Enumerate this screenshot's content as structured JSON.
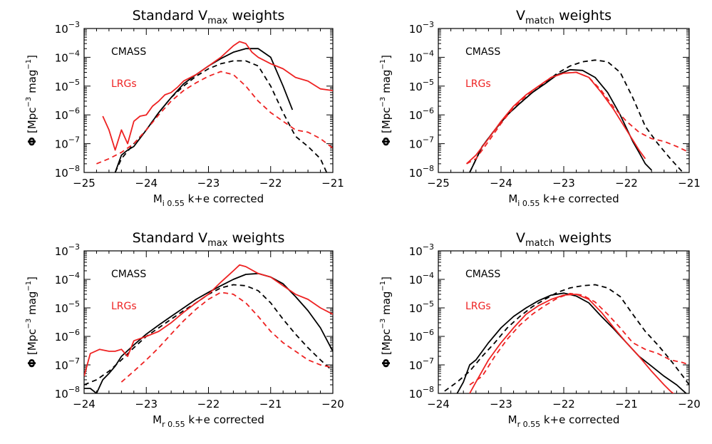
{
  "figure": {
    "ylabel_prefix": "Φ",
    "ylabel_unit": "[Mpc",
    "ylabel_exp1": "−3",
    "ylabel_mid": " mag",
    "ylabel_exp2": "−1",
    "ylabel_end": "]",
    "legend_black": "CMASS",
    "legend_red": "LRGs",
    "colors": {
      "cmass": "#000000",
      "lrgs": "#ee2222"
    }
  },
  "chart_data": [
    {
      "type": "line",
      "title": "Standard V",
      "title_sub": "max",
      "title_suffix": " weights",
      "xlabel": "M",
      "xlabel_sub": "i 0.55",
      "xlabel_suffix": " k+e corrected",
      "xlim": [
        -25,
        -21
      ],
      "ylim": [
        1e-08,
        0.001
      ],
      "yscale": "log",
      "xticks": [
        "−25",
        "−24",
        "−23",
        "−22",
        "−21"
      ],
      "yticks": [
        {
          "base": "10",
          "exp": "−3"
        },
        {
          "base": "10",
          "exp": "−4"
        },
        {
          "base": "10",
          "exp": "−5"
        },
        {
          "base": "10",
          "exp": "−6"
        },
        {
          "base": "10",
          "exp": "−7"
        },
        {
          "base": "10",
          "exp": "−8"
        }
      ],
      "series": [
        {
          "name": "CMASS",
          "color": "#000000",
          "dash": "solid",
          "x": [
            -24.5,
            -24.4,
            -24.3,
            -24.2,
            -24.0,
            -23.8,
            -23.6,
            -23.4,
            -23.2,
            -23.0,
            -22.8,
            -22.6,
            -22.4,
            -22.2,
            -22.0,
            -21.8,
            -21.65
          ],
          "y": [
            1e-08,
            4e-08,
            6e-08,
            8e-08,
            3e-07,
            1.2e-06,
            4e-06,
            1.2e-05,
            2.5e-05,
            5e-05,
            9e-05,
            0.00015,
            0.0002,
            0.0002,
            0.0001,
            1e-05,
            1.5e-06
          ]
        },
        {
          "name": "",
          "color": "#000000",
          "dash": "dashed",
          "x": [
            -24.5,
            -24.4,
            -24.2,
            -24.0,
            -23.8,
            -23.6,
            -23.4,
            -23.2,
            -23.0,
            -22.8,
            -22.6,
            -22.4,
            -22.2,
            -22.0,
            -21.8,
            -21.6,
            -21.4,
            -21.2,
            -21.1
          ],
          "y": [
            1e-08,
            3e-08,
            1e-07,
            3e-07,
            1.2e-06,
            4e-06,
            1e-05,
            2.2e-05,
            4e-05,
            6e-05,
            7.5e-05,
            7.5e-05,
            5e-05,
            1e-05,
            1.2e-06,
            1.8e-07,
            8e-08,
            3e-08,
            1e-08
          ]
        },
        {
          "name": "LRGs",
          "color": "#ee2222",
          "dash": "solid",
          "x": [
            -24.7,
            -24.6,
            -24.5,
            -24.4,
            -24.3,
            -24.2,
            -24.1,
            -24.0,
            -23.9,
            -23.8,
            -23.7,
            -23.6,
            -23.5,
            -23.4,
            -23.2,
            -23.0,
            -22.8,
            -22.6,
            -22.5,
            -22.4,
            -22.3,
            -22.2,
            -22.0,
            -21.8,
            -21.6,
            -21.4,
            -21.2,
            -21.0
          ],
          "y": [
            9e-07,
            3e-07,
            6e-08,
            3e-07,
            1e-07,
            6e-07,
            9e-07,
            1e-06,
            2e-06,
            3e-06,
            5e-06,
            6e-06,
            9e-06,
            1.5e-05,
            2.5e-05,
            5e-05,
            0.0001,
            0.00025,
            0.00035,
            0.0003,
            0.00015,
            0.0001,
            6e-05,
            4e-05,
            2e-05,
            1.5e-05,
            8e-06,
            7e-06
          ]
        },
        {
          "name": "",
          "color": "#ee2222",
          "dash": "dashed",
          "x": [
            -24.8,
            -24.6,
            -24.4,
            -24.2,
            -24.0,
            -23.8,
            -23.6,
            -23.4,
            -23.2,
            -23.0,
            -22.8,
            -22.6,
            -22.4,
            -22.2,
            -22.0,
            -21.8,
            -21.6,
            -21.4,
            -21.2,
            -21.0
          ],
          "y": [
            2e-08,
            3e-08,
            5e-08,
            1e-07,
            3e-07,
            1e-06,
            3e-06,
            7e-06,
            1.3e-05,
            2.2e-05,
            3.2e-05,
            2.5e-05,
            1e-05,
            3e-06,
            1.2e-06,
            6e-07,
            3e-07,
            2.5e-07,
            1.5e-07,
            7e-08
          ]
        }
      ]
    },
    {
      "type": "line",
      "title": "V",
      "title_sub": "match",
      "title_suffix": " weights",
      "xlabel": "M",
      "xlabel_sub": "i 0.55",
      "xlabel_suffix": " k+e corrected",
      "xlim": [
        -25,
        -21
      ],
      "ylim": [
        1e-08,
        0.001
      ],
      "yscale": "log",
      "xticks": [
        "−25",
        "−24",
        "−23",
        "−22",
        "−21"
      ],
      "yticks": [
        {
          "base": "10",
          "exp": "−3"
        },
        {
          "base": "10",
          "exp": "−4"
        },
        {
          "base": "10",
          "exp": "−5"
        },
        {
          "base": "10",
          "exp": "−6"
        },
        {
          "base": "10",
          "exp": "−7"
        },
        {
          "base": "10",
          "exp": "−8"
        }
      ],
      "series": [
        {
          "name": "CMASS",
          "color": "#000000",
          "dash": "solid",
          "x": [
            -24.5,
            -24.3,
            -24.1,
            -23.9,
            -23.7,
            -23.5,
            -23.3,
            -23.1,
            -22.9,
            -22.7,
            -22.5,
            -22.3,
            -22.1,
            -21.9,
            -21.8,
            -21.7,
            -21.6
          ],
          "y": [
            1e-08,
            8e-08,
            3e-07,
            1e-06,
            2.5e-06,
            6e-06,
            1.2e-05,
            2.5e-05,
            3.7e-05,
            3.5e-05,
            2e-05,
            6e-06,
            1e-06,
            1.2e-07,
            5e-08,
            2e-08,
            1.2e-08
          ]
        },
        {
          "name": "",
          "color": "#000000",
          "dash": "dashed",
          "x": [
            -24.5,
            -24.3,
            -24.1,
            -23.9,
            -23.7,
            -23.5,
            -23.3,
            -23.1,
            -22.9,
            -22.7,
            -22.5,
            -22.3,
            -22.1,
            -21.9,
            -21.7,
            -21.5,
            -21.3,
            -21.1
          ],
          "y": [
            1e-08,
            8e-08,
            3e-07,
            1e-06,
            2.5e-06,
            6e-06,
            1.3e-05,
            2.8e-05,
            5e-05,
            7e-05,
            8e-05,
            7e-05,
            3e-05,
            4e-06,
            4e-07,
            1e-07,
            3e-08,
            1e-08
          ]
        },
        {
          "name": "LRGs",
          "color": "#ee2222",
          "dash": "solid",
          "x": [
            -24.55,
            -24.4,
            -24.2,
            -24.0,
            -23.8,
            -23.6,
            -23.4,
            -23.2,
            -23.0,
            -22.8,
            -22.6,
            -22.4,
            -22.2,
            -22.0,
            -21.8,
            -21.7
          ],
          "y": [
            2e-08,
            4e-08,
            1.5e-07,
            6e-07,
            2e-06,
            5e-06,
            1e-05,
            2e-05,
            2.8e-05,
            3e-05,
            2e-05,
            6e-06,
            1.5e-06,
            3e-07,
            6e-08,
            3e-08
          ]
        },
        {
          "name": "",
          "color": "#ee2222",
          "dash": "dashed",
          "x": [
            -24.55,
            -24.4,
            -24.2,
            -24.0,
            -23.8,
            -23.6,
            -23.4,
            -23.2,
            -23.0,
            -22.8,
            -22.6,
            -22.4,
            -22.2,
            -22.0,
            -21.8,
            -21.6,
            -21.4,
            -21.2,
            -21.0
          ],
          "y": [
            2e-08,
            3e-08,
            1.2e-07,
            5e-07,
            1.8e-06,
            4.5e-06,
            1e-05,
            2e-05,
            2.8e-05,
            3e-05,
            2e-05,
            7e-06,
            1.8e-06,
            6e-07,
            2.5e-07,
            1.5e-07,
            1.2e-07,
            8e-08,
            5e-08
          ]
        }
      ]
    },
    {
      "type": "line",
      "title": "Standard V",
      "title_sub": "max",
      "title_suffix": " weights",
      "xlabel": "M",
      "xlabel_sub": "r 0.55",
      "xlabel_suffix": " k+e corrected",
      "xlim": [
        -24,
        -20
      ],
      "ylim": [
        1e-08,
        0.001
      ],
      "yscale": "log",
      "xticks": [
        "−24",
        "−23",
        "−22",
        "−21",
        "−20"
      ],
      "yticks": [
        {
          "base": "10",
          "exp": "−3"
        },
        {
          "base": "10",
          "exp": "−4"
        },
        {
          "base": "10",
          "exp": "−5"
        },
        {
          "base": "10",
          "exp": "−6"
        },
        {
          "base": "10",
          "exp": "−7"
        },
        {
          "base": "10",
          "exp": "−8"
        }
      ],
      "series": [
        {
          "name": "CMASS",
          "color": "#000000",
          "dash": "solid",
          "x": [
            -24.0,
            -23.9,
            -23.8,
            -23.7,
            -23.6,
            -23.5,
            -23.4,
            -23.2,
            -23.0,
            -22.8,
            -22.6,
            -22.4,
            -22.2,
            -22.0,
            -21.8,
            -21.6,
            -21.4,
            -21.2,
            -21.0,
            -20.8,
            -20.6,
            -20.4,
            -20.2,
            -20.0
          ],
          "y": [
            1.5e-08,
            1.5e-08,
            1e-08,
            3e-08,
            5e-08,
            9e-08,
            2e-07,
            5e-07,
            1.2e-06,
            2.5e-06,
            5e-06,
            1e-05,
            2e-05,
            3.5e-05,
            6e-05,
            0.0001,
            0.00015,
            0.00016,
            0.00012,
            7e-05,
            2.5e-05,
            8e-06,
            2e-06,
            3e-07
          ]
        },
        {
          "name": "",
          "color": "#000000",
          "dash": "dashed",
          "x": [
            -24.0,
            -23.8,
            -23.6,
            -23.4,
            -23.2,
            -23.0,
            -22.8,
            -22.6,
            -22.4,
            -22.2,
            -22.0,
            -21.8,
            -21.6,
            -21.4,
            -21.2,
            -21.0,
            -20.8,
            -20.6,
            -20.4,
            -20.2,
            -20.0
          ],
          "y": [
            2e-08,
            3e-08,
            6e-08,
            1.5e-07,
            4e-07,
            1e-06,
            2e-06,
            4e-06,
            8e-06,
            1.5e-05,
            3e-05,
            5e-05,
            6.5e-05,
            6e-05,
            4e-05,
            1.5e-05,
            4e-06,
            1.2e-06,
            4e-07,
            1.5e-07,
            6e-08
          ]
        },
        {
          "name": "LRGs",
          "color": "#ee2222",
          "dash": "solid",
          "x": [
            -24.0,
            -23.9,
            -23.75,
            -23.6,
            -23.5,
            -23.4,
            -23.3,
            -23.2,
            -23.0,
            -22.8,
            -22.6,
            -22.4,
            -22.2,
            -22.0,
            -21.8,
            -21.6,
            -21.5,
            -21.4,
            -21.2,
            -21.0,
            -20.8,
            -20.6,
            -20.4,
            -20.2,
            -20.0
          ],
          "y": [
            4e-08,
            2.5e-07,
            3.5e-07,
            3e-07,
            3e-07,
            3.5e-07,
            2e-07,
            7e-07,
            1e-06,
            1.5e-06,
            3e-06,
            7e-06,
            1.5e-05,
            3e-05,
            8e-05,
            0.0002,
            0.00032,
            0.00028,
            0.00016,
            0.00012,
            6e-05,
            3e-05,
            2e-05,
            1e-05,
            6e-06
          ]
        },
        {
          "name": "",
          "color": "#ee2222",
          "dash": "dashed",
          "x": [
            -23.4,
            -23.2,
            -23.0,
            -22.8,
            -22.6,
            -22.4,
            -22.2,
            -22.0,
            -21.8,
            -21.6,
            -21.4,
            -21.2,
            -21.0,
            -20.8,
            -20.6,
            -20.4,
            -20.2,
            -20.0
          ],
          "y": [
            2.5e-08,
            6e-08,
            1.5e-07,
            4e-07,
            1.2e-06,
            3.5e-06,
            9e-06,
            2e-05,
            3.5e-05,
            3e-05,
            1.5e-05,
            5e-06,
            1.5e-06,
            6e-07,
            3e-07,
            1.5e-07,
            1e-07,
            8e-08
          ]
        }
      ]
    },
    {
      "type": "line",
      "title": "V",
      "title_sub": "match",
      "title_suffix": " weights",
      "xlabel": "M",
      "xlabel_sub": "r 0.55",
      "xlabel_suffix": " k+e corrected",
      "xlim": [
        -24,
        -20
      ],
      "ylim": [
        1e-08,
        0.001
      ],
      "yscale": "log",
      "xticks": [
        "−24",
        "−23",
        "−22",
        "−21",
        "−20"
      ],
      "yticks": [
        {
          "base": "10",
          "exp": "−3"
        },
        {
          "base": "10",
          "exp": "−4"
        },
        {
          "base": "10",
          "exp": "−5"
        },
        {
          "base": "10",
          "exp": "−6"
        },
        {
          "base": "10",
          "exp": "−7"
        },
        {
          "base": "10",
          "exp": "−8"
        }
      ],
      "series": [
        {
          "name": "CMASS",
          "color": "#000000",
          "dash": "solid",
          "x": [
            -23.7,
            -23.6,
            -23.5,
            -23.4,
            -23.2,
            -23.0,
            -22.8,
            -22.6,
            -22.4,
            -22.2,
            -22.0,
            -21.8,
            -21.6,
            -21.4,
            -21.2,
            -21.0,
            -20.8,
            -20.6,
            -20.4,
            -20.2,
            -20.0
          ],
          "y": [
            1e-08,
            2.5e-08,
            1e-07,
            1.5e-07,
            6e-07,
            2e-06,
            5e-06,
            1e-05,
            1.8e-05,
            2.8e-05,
            3.3e-05,
            2.6e-05,
            1.5e-05,
            5e-06,
            1.8e-06,
            6e-07,
            2e-07,
            9e-08,
            4e-08,
            2e-08,
            8e-09
          ]
        },
        {
          "name": "",
          "color": "#000000",
          "dash": "dashed",
          "x": [
            -23.9,
            -23.7,
            -23.5,
            -23.3,
            -23.1,
            -22.9,
            -22.7,
            -22.5,
            -22.3,
            -22.1,
            -21.9,
            -21.7,
            -21.5,
            -21.3,
            -21.1,
            -20.9,
            -20.7,
            -20.5,
            -20.3,
            -20.1,
            -20.0
          ],
          "y": [
            1.2e-08,
            2.5e-08,
            6e-08,
            2e-07,
            6e-07,
            2e-06,
            5e-06,
            1.1e-05,
            2e-05,
            3.5e-05,
            5e-05,
            6e-05,
            6.5e-05,
            5e-05,
            2.5e-05,
            6e-06,
            1.5e-06,
            5e-07,
            1.5e-07,
            4e-08,
            2e-08
          ]
        },
        {
          "name": "LRGs",
          "color": "#ee2222",
          "dash": "solid",
          "x": [
            -23.5,
            -23.4,
            -23.2,
            -23.0,
            -22.8,
            -22.6,
            -22.4,
            -22.2,
            -22.0,
            -21.8,
            -21.6,
            -21.4,
            -21.2,
            -21.0,
            -20.8,
            -20.6,
            -20.4,
            -20.3,
            -20.2
          ],
          "y": [
            1e-08,
            2.5e-08,
            1.5e-07,
            6e-07,
            2e-06,
            6e-06,
            1.2e-05,
            2e-05,
            2.8e-05,
            3e-05,
            2e-05,
            7e-06,
            2e-06,
            6e-07,
            2e-07,
            6e-08,
            2e-08,
            1.2e-08,
            8e-09
          ]
        },
        {
          "name": "",
          "color": "#ee2222",
          "dash": "dashed",
          "x": [
            -23.5,
            -23.3,
            -23.1,
            -22.9,
            -22.7,
            -22.5,
            -22.3,
            -22.1,
            -21.9,
            -21.7,
            -21.5,
            -21.3,
            -21.1,
            -20.9,
            -20.7,
            -20.5,
            -20.3,
            -20.1,
            -20.0
          ],
          "y": [
            2e-08,
            4e-08,
            2e-07,
            8e-07,
            2.5e-06,
            6e-06,
            1.2e-05,
            2.2e-05,
            3.2e-05,
            2.8e-05,
            1.6e-05,
            6e-06,
            2e-06,
            6e-07,
            3.5e-07,
            2.5e-07,
            1.5e-07,
            1.2e-07,
            1e-07
          ]
        }
      ]
    }
  ]
}
